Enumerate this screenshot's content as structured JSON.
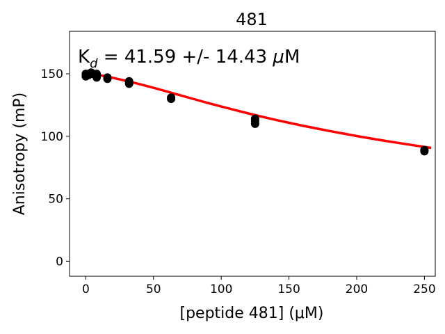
{
  "chart_data": {
    "type": "scatter",
    "title": "481",
    "xlabel": "[peptide 481] (μM)",
    "ylabel": "Anisotropy (mP)",
    "xlim": [
      -12,
      258
    ],
    "ylim": [
      -12,
      184
    ],
    "xticks": [
      0,
      50,
      100,
      150,
      200,
      250
    ],
    "yticks": [
      0,
      50,
      100,
      150
    ],
    "grid": false,
    "annotation": {
      "prefix": "K",
      "subscript": "d",
      "suffix": " = 41.59 +/- 14.43 ",
      "unit_symbol": "μ",
      "unit_rest": "M"
    },
    "points": {
      "color": "#000000",
      "x": [
        0,
        0,
        0,
        2,
        2,
        4,
        4,
        8,
        8,
        8,
        16,
        16,
        32,
        32,
        32,
        63,
        63,
        125,
        125,
        125,
        250,
        250
      ],
      "y": [
        148,
        149,
        150,
        150,
        149,
        151,
        150,
        150,
        149,
        147,
        147,
        146,
        144,
        142,
        143,
        131,
        130,
        114,
        112,
        110,
        89,
        88
      ]
    },
    "fit": {
      "color": "#ff0000",
      "x": [
        0,
        10,
        20,
        30,
        40,
        50,
        60,
        70,
        80,
        90,
        100,
        110,
        120,
        130,
        140,
        150,
        160,
        170,
        180,
        190,
        200,
        210,
        220,
        230,
        240,
        250,
        255
      ],
      "y": [
        149.5,
        148.9,
        146.8,
        144.3,
        141.6,
        138.8,
        135.8,
        132.7,
        129.7,
        126.7,
        123.8,
        121.0,
        118.3,
        115.7,
        113.2,
        110.8,
        108.5,
        106.3,
        104.2,
        102.2,
        100.2,
        98.3,
        96.5,
        94.8,
        93.1,
        91.5,
        90.7
      ]
    }
  }
}
